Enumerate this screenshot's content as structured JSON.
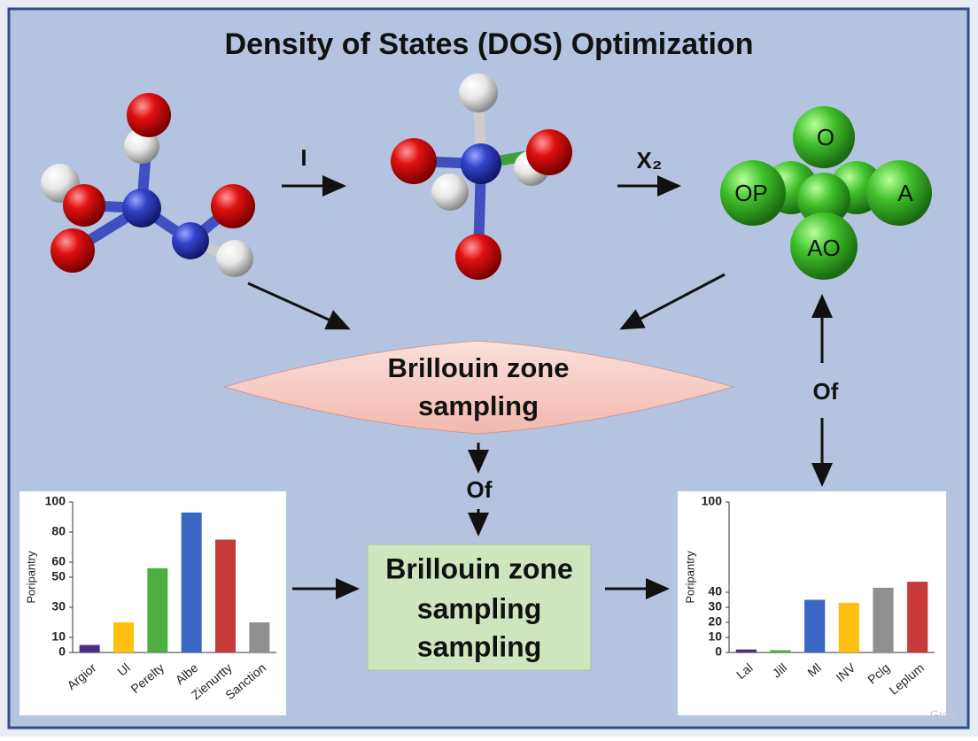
{
  "title": "Density of States (DOS) Optimization",
  "reactions": [
    "I",
    "X₂"
  ],
  "molecule_atoms": [
    "O",
    "OP",
    "A",
    "AO"
  ],
  "diamond": {
    "lines": [
      "Brillouin zone",
      "sampling"
    ]
  },
  "box": {
    "lines": [
      "Brillouin zone",
      "sampling",
      "sampling"
    ]
  },
  "connectors": [
    "Of",
    "Of"
  ],
  "watermark": "Grok",
  "chart_data": [
    {
      "type": "bar",
      "y_label": "Poripantry",
      "categories": [
        "Argior",
        "Ul",
        "Perelty",
        "Albe",
        "Zienurtty",
        "Sanction"
      ],
      "values": [
        5,
        20,
        56,
        93,
        75,
        20
      ],
      "colors": [
        "#4b2e83",
        "#fdc010",
        "#4caf3f",
        "#3a66c4",
        "#c83a3a",
        "#909090"
      ],
      "ylim": [
        0,
        100
      ],
      "yticks": [
        0,
        10,
        30,
        50,
        60,
        80,
        100
      ]
    },
    {
      "type": "bar",
      "y_label": "Poripantry",
      "categories": [
        "Lal",
        "Jill",
        "Ml",
        "INV",
        "Pclg",
        "Leplum"
      ],
      "values": [
        2,
        1.5,
        35,
        33,
        43,
        47
      ],
      "colors": [
        "#4b2e83",
        "#4caf3f",
        "#3a66c4",
        "#fdc010",
        "#909090",
        "#c83a3a"
      ],
      "ylim": [
        0,
        100
      ],
      "yticks": [
        0,
        10,
        20,
        30,
        40,
        100
      ]
    }
  ]
}
